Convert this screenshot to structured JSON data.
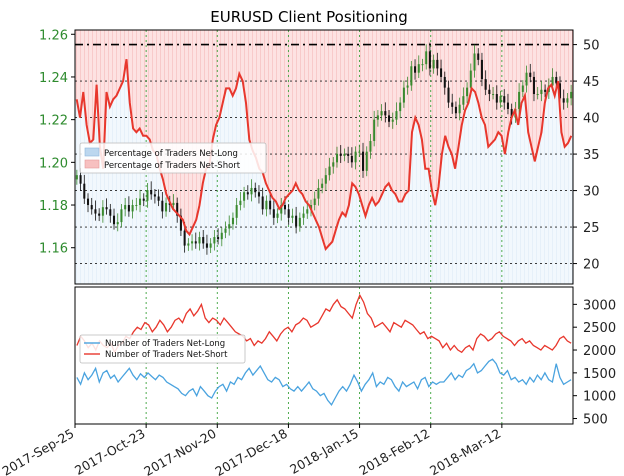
{
  "chart_data": {
    "type": "line",
    "title": "EURUSD Client Positioning",
    "x_ticks": [
      "2017-Sep-25",
      "2017-Oct-23",
      "2017-Nov-20",
      "2017-Dec-18",
      "2018-Jan-15",
      "2018-Feb-12",
      "2018-Mar-12"
    ],
    "grid": true,
    "top_panel": {
      "price_axis": {
        "ticks": [
          "1.16",
          "1.18",
          "1.20",
          "1.22",
          "1.24",
          "1.26"
        ],
        "ylim": [
          1.143,
          1.262
        ],
        "color": "#2e8b2e"
      },
      "ratio_axis": {
        "ticks": [
          "20",
          "25",
          "30",
          "35",
          "40",
          "45",
          "50"
        ],
        "ylim": [
          17.2,
          52.0
        ]
      },
      "reference_line": 50,
      "legend": {
        "position": "middle-left",
        "items": [
          {
            "label": "Percentage of Traders Net-Long",
            "color": "#bcd7ef"
          },
          {
            "label": "Percentage of Traders Net-Short",
            "color": "#f7c0c0"
          }
        ]
      },
      "price_candles": {
        "color_up": "#3a8a2f",
        "color_down": "#111111",
        "close": [
          1.194,
          1.19,
          1.183,
          1.18,
          1.178,
          1.176,
          1.175,
          1.179,
          1.178,
          1.175,
          1.171,
          1.172,
          1.178,
          1.18,
          1.177,
          1.18,
          1.18,
          1.183,
          1.182,
          1.187,
          1.185,
          1.184,
          1.182,
          1.177,
          1.181,
          1.18,
          1.181,
          1.175,
          1.168,
          1.161,
          1.162,
          1.163,
          1.162,
          1.165,
          1.162,
          1.16,
          1.162,
          1.165,
          1.164,
          1.167,
          1.169,
          1.171,
          1.174,
          1.18,
          1.182,
          1.186,
          1.185,
          1.188,
          1.186,
          1.184,
          1.178,
          1.182,
          1.178,
          1.174,
          1.176,
          1.18,
          1.178,
          1.174,
          1.175,
          1.17,
          1.174,
          1.176,
          1.178,
          1.18,
          1.183,
          1.188,
          1.19,
          1.194,
          1.198,
          1.2,
          1.204,
          1.203,
          1.204,
          1.203,
          1.2,
          1.205,
          1.205,
          1.196,
          1.205,
          1.21,
          1.22,
          1.222,
          1.224,
          1.222,
          1.219,
          1.22,
          1.224,
          1.228,
          1.235,
          1.236,
          1.245,
          1.242,
          1.246,
          1.246,
          1.252,
          1.244,
          1.248,
          1.244,
          1.24,
          1.235,
          1.228,
          1.226,
          1.223,
          1.227,
          1.231,
          1.235,
          1.243,
          1.251,
          1.248,
          1.239,
          1.234,
          1.232,
          1.232,
          1.228,
          1.231,
          1.228,
          1.225,
          1.221,
          1.225,
          1.233,
          1.236,
          1.242,
          1.24,
          1.232,
          1.232,
          1.234,
          1.233,
          1.236,
          1.24,
          1.237,
          1.23,
          1.228,
          1.23,
          1.233
        ]
      },
      "series": [
        {
          "name": "Percentage of Traders Net-Short",
          "color": "#e8372d",
          "values": [
            42.5,
            40.0,
            43.5,
            39.0,
            36.5,
            37.0,
            44.5,
            36.0,
            33.0,
            43.5,
            41.5,
            42.5,
            43.0,
            44.0,
            45.0,
            48.0,
            42.0,
            38.5,
            38.0,
            38.5,
            37.5,
            37.5,
            37.0,
            35.5,
            35.0,
            33.0,
            31.5,
            29.5,
            28.5,
            27.5,
            27.0,
            26.5,
            26.0,
            24.5,
            24.0,
            25.0,
            26.0,
            28.0,
            31.0,
            33.0,
            33.5,
            37.0,
            39.0,
            40.0,
            42.0,
            44.0,
            44.0,
            43.0,
            44.0,
            46.0,
            45.0,
            42.0,
            37.0,
            35.5,
            34.5,
            33.0,
            32.5,
            31.0,
            30.0,
            29.0,
            28.5,
            27.5,
            28.0,
            29.0,
            29.5,
            30.0,
            31.0,
            30.0,
            29.5,
            28.5,
            28.0,
            27.0,
            26.0,
            25.0,
            23.5,
            22.0,
            22.5,
            23.0,
            24.5,
            26.0,
            27.0,
            26.5,
            28.0,
            31.0,
            30.5,
            29.5,
            28.0,
            26.5,
            28.0,
            29.0,
            28.0,
            28.5,
            29.5,
            30.5,
            31.0,
            30.0,
            29.5,
            28.5,
            28.5,
            29.5,
            30.0,
            38.0,
            40.0,
            39.0,
            37.0,
            33.0,
            33.0,
            30.0,
            28.0,
            30.5,
            35.0,
            37.5,
            36.0,
            35.0,
            33.0,
            36.0,
            39.0,
            41.0,
            42.0,
            44.0,
            43.5,
            42.0,
            40.0,
            39.0,
            36.0,
            36.5,
            37.0,
            38.0,
            37.5,
            35.0,
            38.0,
            40.0,
            41.0,
            39.0,
            42.0,
            43.0,
            38.0,
            36.0,
            34.0,
            36.0,
            38.0,
            42.0,
            44.0,
            44.5,
            43.0,
            45.0,
            38.0,
            36.0,
            36.5,
            37.5
          ]
        }
      ]
    },
    "bottom_panel": {
      "y_axis": {
        "ticks": [
          "500",
          "1000",
          "1500",
          "2000",
          "2500",
          "3000"
        ],
        "ylim": [
          380,
          3380
        ]
      },
      "legend": {
        "position": "upper-left",
        "items": [
          {
            "label": "Number of Traders Net-Long",
            "color": "#4aa3df"
          },
          {
            "label": "Number of Traders Net-Short",
            "color": "#e8372d"
          }
        ]
      },
      "series": [
        {
          "name": "Number of Traders Net-Long",
          "color": "#4aa3df",
          "values": [
            1400,
            1250,
            1500,
            1350,
            1450,
            1600,
            1300,
            1500,
            1550,
            1380,
            1450,
            1300,
            1400,
            1500,
            1600,
            1450,
            1350,
            1480,
            1400,
            1500,
            1420,
            1350,
            1450,
            1400,
            1300,
            1250,
            1200,
            1150,
            1050,
            1000,
            1100,
            1150,
            1000,
            1200,
            1100,
            1000,
            950,
            1100,
            1200,
            1250,
            1100,
            1300,
            1250,
            1400,
            1350,
            1500,
            1600,
            1450,
            1550,
            1650,
            1500,
            1350,
            1300,
            1400,
            1350,
            1200,
            1250,
            1150,
            1100,
            1200,
            1100,
            1200,
            1300,
            1150,
            1100,
            1000,
            1050,
            900,
            800,
            950,
            1100,
            1200,
            1100,
            1250,
            1450,
            1300,
            1100,
            1250,
            1350,
            1500,
            1200,
            1300,
            1250,
            1400,
            1350,
            1200,
            1100,
            1300,
            1200,
            1250,
            1300,
            1150,
            1350,
            1400,
            1200,
            1300,
            1250,
            1300,
            1300,
            1400,
            1500,
            1350,
            1450,
            1400,
            1550,
            1600,
            1700,
            1500,
            1550,
            1650,
            1750,
            1800,
            1700,
            1500,
            1450,
            1550,
            1350,
            1400,
            1300,
            1350,
            1250,
            1400,
            1300,
            1450,
            1350,
            1500,
            1350,
            1300,
            1700,
            1400,
            1250,
            1300,
            1350
          ]
        },
        {
          "name": "Number of Traders Net-Short",
          "color": "#e8372d",
          "values": [
            2100,
            2300,
            2200,
            2050,
            2150,
            2000,
            2200,
            2100,
            2050,
            2150,
            1950,
            2100,
            2150,
            2300,
            2250,
            2400,
            2500,
            2450,
            2600,
            2550,
            2400,
            2500,
            2650,
            2550,
            2400,
            2500,
            2650,
            2700,
            2600,
            2800,
            2900,
            2750,
            2850,
            3000,
            2700,
            2600,
            2700,
            2650,
            2550,
            2700,
            2600,
            2500,
            2400,
            2350,
            2300,
            2200,
            2250,
            2100,
            2200,
            2150,
            2250,
            2400,
            2300,
            2200,
            2350,
            2450,
            2500,
            2400,
            2550,
            2600,
            2700,
            2650,
            2500,
            2550,
            2600,
            2750,
            2900,
            2850,
            3000,
            3100,
            2950,
            2900,
            2800,
            2700,
            3000,
            3200,
            3050,
            2800,
            2700,
            2500,
            2550,
            2600,
            2500,
            2400,
            2600,
            2550,
            2500,
            2650,
            2600,
            2550,
            2450,
            2350,
            2400,
            2250,
            2300,
            2250,
            2200,
            2050,
            2150,
            2000,
            2100,
            2000,
            1950,
            2050,
            2100,
            2000,
            2250,
            2350,
            2300,
            2200,
            2250,
            2350,
            2400,
            2300,
            2250,
            2200,
            2100,
            2200,
            2250,
            2150,
            2200,
            2100,
            2050,
            2000,
            2100,
            2050,
            2000,
            2100,
            2250,
            2300,
            2200,
            2150
          ]
        }
      ]
    }
  }
}
